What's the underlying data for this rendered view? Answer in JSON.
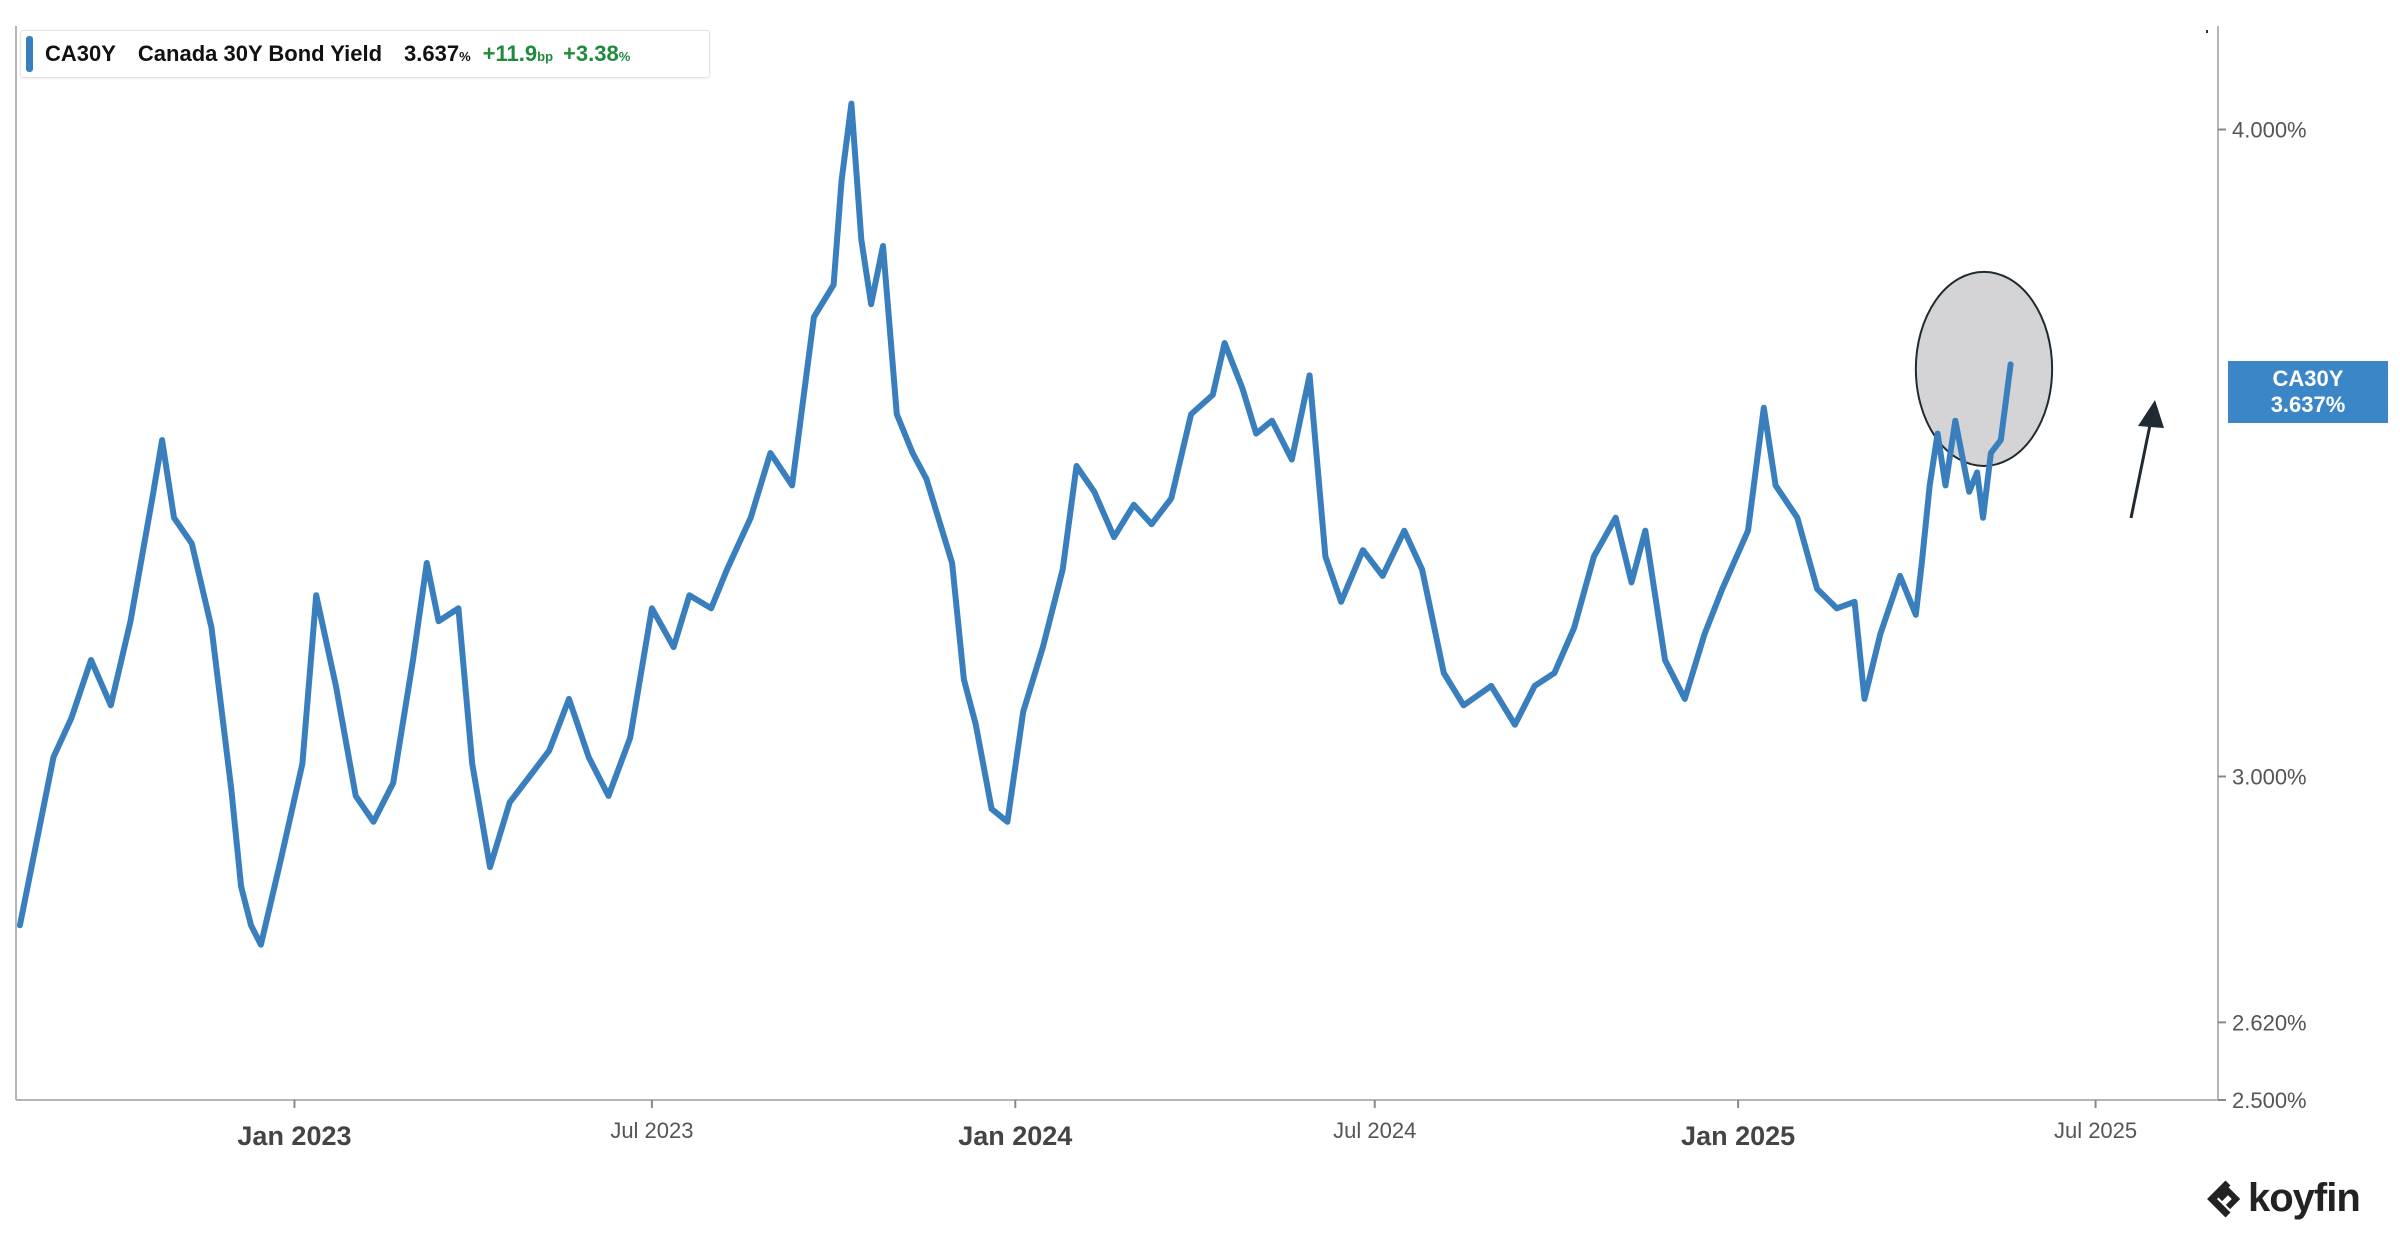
{
  "legend": {
    "ticker": "CA30Y",
    "name": "Canada 30Y Bond Yield",
    "value": "3.637",
    "value_unit": "%",
    "change_bp": "+11.9",
    "change_bp_unit": "bp",
    "change_pct": "+3.38",
    "change_pct_unit": "%"
  },
  "price_tag": {
    "ticker": "CA30Y",
    "value": "3.637%"
  },
  "brand": "koyfin",
  "colors": {
    "series": "#3a7fbd",
    "tag": "#3a86c6",
    "positive": "#1e8a3c",
    "annotation_fill": "#d4d4d6",
    "arrow": "#1f2a33"
  },
  "chart_data": {
    "type": "line",
    "series": [
      {
        "name": "CA30Y",
        "points": [
          [
            "2022-08-15",
            2.77
          ],
          [
            "2022-09-01",
            3.03
          ],
          [
            "2022-09-10",
            3.09
          ],
          [
            "2022-09-20",
            3.18
          ],
          [
            "2022-09-30",
            3.11
          ],
          [
            "2022-10-10",
            3.24
          ],
          [
            "2022-10-21",
            3.43
          ],
          [
            "2022-10-26",
            3.52
          ],
          [
            "2022-11-01",
            3.4
          ],
          [
            "2022-11-10",
            3.36
          ],
          [
            "2022-11-20",
            3.23
          ],
          [
            "2022-11-30",
            2.98
          ],
          [
            "2022-12-05",
            2.83
          ],
          [
            "2022-12-10",
            2.77
          ],
          [
            "2022-12-15",
            2.74
          ],
          [
            "2022-12-25",
            2.87
          ],
          [
            "2023-01-05",
            3.02
          ],
          [
            "2023-01-12",
            3.28
          ],
          [
            "2023-01-22",
            3.14
          ],
          [
            "2023-02-01",
            2.97
          ],
          [
            "2023-02-10",
            2.93
          ],
          [
            "2023-02-20",
            2.99
          ],
          [
            "2023-03-02",
            3.18
          ],
          [
            "2023-03-09",
            3.33
          ],
          [
            "2023-03-15",
            3.24
          ],
          [
            "2023-03-25",
            3.26
          ],
          [
            "2023-04-01",
            3.02
          ],
          [
            "2023-04-10",
            2.86
          ],
          [
            "2023-04-20",
            2.96
          ],
          [
            "2023-04-30",
            3.0
          ],
          [
            "2023-05-10",
            3.04
          ],
          [
            "2023-05-20",
            3.12
          ],
          [
            "2023-05-30",
            3.03
          ],
          [
            "2023-06-09",
            2.97
          ],
          [
            "2023-06-20",
            3.06
          ],
          [
            "2023-07-01",
            3.26
          ],
          [
            "2023-07-12",
            3.2
          ],
          [
            "2023-07-20",
            3.28
          ],
          [
            "2023-07-31",
            3.26
          ],
          [
            "2023-08-08",
            3.32
          ],
          [
            "2023-08-20",
            3.4
          ],
          [
            "2023-08-30",
            3.5
          ],
          [
            "2023-09-10",
            3.45
          ],
          [
            "2023-09-21",
            3.71
          ],
          [
            "2023-10-01",
            3.76
          ],
          [
            "2023-10-05",
            3.92
          ],
          [
            "2023-10-10",
            4.04
          ],
          [
            "2023-10-15",
            3.83
          ],
          [
            "2023-10-20",
            3.73
          ],
          [
            "2023-10-26",
            3.82
          ],
          [
            "2023-11-02",
            3.56
          ],
          [
            "2023-11-10",
            3.5
          ],
          [
            "2023-11-17",
            3.46
          ],
          [
            "2023-11-30",
            3.33
          ],
          [
            "2023-12-06",
            3.15
          ],
          [
            "2023-12-12",
            3.08
          ],
          [
            "2023-12-20",
            2.95
          ],
          [
            "2023-12-28",
            2.93
          ],
          [
            "2024-01-05",
            3.1
          ],
          [
            "2024-01-15",
            3.2
          ],
          [
            "2024-01-25",
            3.32
          ],
          [
            "2024-02-01",
            3.48
          ],
          [
            "2024-02-10",
            3.44
          ],
          [
            "2024-02-20",
            3.37
          ],
          [
            "2024-03-01",
            3.42
          ],
          [
            "2024-03-10",
            3.39
          ],
          [
            "2024-03-20",
            3.43
          ],
          [
            "2024-03-30",
            3.56
          ],
          [
            "2024-04-10",
            3.59
          ],
          [
            "2024-04-16",
            3.67
          ],
          [
            "2024-04-25",
            3.6
          ],
          [
            "2024-05-02",
            3.53
          ],
          [
            "2024-05-10",
            3.55
          ],
          [
            "2024-05-20",
            3.49
          ],
          [
            "2024-05-29",
            3.62
          ],
          [
            "2024-06-06",
            3.34
          ],
          [
            "2024-06-14",
            3.27
          ],
          [
            "2024-06-25",
            3.35
          ],
          [
            "2024-07-05",
            3.31
          ],
          [
            "2024-07-16",
            3.38
          ],
          [
            "2024-07-25",
            3.32
          ],
          [
            "2024-08-05",
            3.16
          ],
          [
            "2024-08-15",
            3.11
          ],
          [
            "2024-08-29",
            3.14
          ],
          [
            "2024-09-10",
            3.08
          ],
          [
            "2024-09-20",
            3.14
          ],
          [
            "2024-09-30",
            3.16
          ],
          [
            "2024-10-10",
            3.23
          ],
          [
            "2024-10-20",
            3.34
          ],
          [
            "2024-10-31",
            3.4
          ],
          [
            "2024-11-08",
            3.3
          ],
          [
            "2024-11-15",
            3.38
          ],
          [
            "2024-11-25",
            3.18
          ],
          [
            "2024-12-05",
            3.12
          ],
          [
            "2024-12-15",
            3.22
          ],
          [
            "2024-12-24",
            3.29
          ],
          [
            "2025-01-06",
            3.38
          ],
          [
            "2025-01-14",
            3.57
          ],
          [
            "2025-01-20",
            3.45
          ],
          [
            "2025-01-31",
            3.4
          ],
          [
            "2025-02-10",
            3.29
          ],
          [
            "2025-02-20",
            3.26
          ],
          [
            "2025-03-01",
            3.27
          ],
          [
            "2025-03-06",
            3.12
          ],
          [
            "2025-03-14",
            3.22
          ],
          [
            "2025-03-24",
            3.31
          ],
          [
            "2025-04-01",
            3.25
          ],
          [
            "2025-04-04",
            3.33
          ],
          [
            "2025-04-08",
            3.45
          ],
          [
            "2025-04-12",
            3.53
          ],
          [
            "2025-04-16",
            3.45
          ],
          [
            "2025-04-21",
            3.55
          ],
          [
            "2025-04-28",
            3.44
          ],
          [
            "2025-05-02",
            3.47
          ],
          [
            "2025-05-05",
            3.4
          ],
          [
            "2025-05-09",
            3.5
          ],
          [
            "2025-05-14",
            3.52
          ],
          [
            "2025-05-19",
            3.637
          ]
        ]
      }
    ],
    "x_ticks": [
      {
        "date": "2023-01-01",
        "label": "Jan 2023",
        "major": true
      },
      {
        "date": "2023-07-01",
        "label": "Jul 2023",
        "major": false
      },
      {
        "date": "2024-01-01",
        "label": "Jan 2024",
        "major": true
      },
      {
        "date": "2024-07-01",
        "label": "Jul 2024",
        "major": false
      },
      {
        "date": "2025-01-01",
        "label": "Jan 2025",
        "major": true
      },
      {
        "date": "2025-07-01",
        "label": "Jul 2025",
        "major": false
      }
    ],
    "y_ticks": [
      {
        "value": 4.0,
        "label": "4.000%"
      },
      {
        "value": 3.0,
        "label": "3.000%"
      },
      {
        "value": 2.62,
        "label": "2.620%"
      },
      {
        "value": 2.5,
        "label": "2.500%"
      }
    ],
    "xlim": [
      "2022-08-13",
      "2025-09-01"
    ],
    "ylim": [
      2.5,
      4.16
    ],
    "ylabel": "",
    "xlabel": "",
    "grid": false,
    "annotations": [
      {
        "type": "ellipse",
        "x_range": [
          "2025-04-01",
          "2025-06-09"
        ],
        "y_range": [
          3.48,
          3.78
        ]
      },
      {
        "type": "arrow",
        "direction": "up"
      }
    ]
  }
}
